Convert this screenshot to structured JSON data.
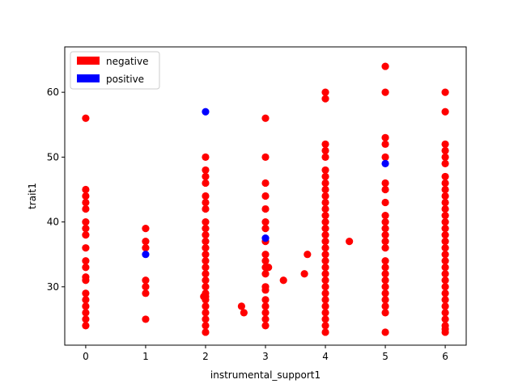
{
  "chart_data": {
    "type": "scatter",
    "xlabel": "instrumental_support1",
    "ylabel": "trait1",
    "xlim": [
      -0.35,
      6.35
    ],
    "ylim": [
      21,
      67
    ],
    "xticks": [
      0,
      1,
      2,
      3,
      4,
      5,
      6
    ],
    "yticks": [
      30,
      40,
      50,
      60
    ],
    "grid": false,
    "legend_position": "top-left",
    "series": [
      {
        "name": "negative",
        "color": "#ff0000",
        "points": [
          [
            0,
            56
          ],
          [
            0,
            45
          ],
          [
            0,
            44
          ],
          [
            0,
            43
          ],
          [
            0,
            42
          ],
          [
            0,
            40
          ],
          [
            0,
            39
          ],
          [
            0,
            38
          ],
          [
            0,
            36
          ],
          [
            0,
            34
          ],
          [
            0,
            33
          ],
          [
            0,
            31.5
          ],
          [
            0,
            31
          ],
          [
            0,
            29
          ],
          [
            0,
            28
          ],
          [
            0,
            27
          ],
          [
            0,
            26
          ],
          [
            0,
            25
          ],
          [
            0,
            24
          ],
          [
            1,
            39
          ],
          [
            1,
            37
          ],
          [
            1,
            36
          ],
          [
            1,
            31
          ],
          [
            1,
            30
          ],
          [
            1,
            29
          ],
          [
            1,
            25
          ],
          [
            2,
            50
          ],
          [
            2,
            48
          ],
          [
            2,
            47
          ],
          [
            2,
            46
          ],
          [
            2,
            44
          ],
          [
            2,
            43
          ],
          [
            2,
            42
          ],
          [
            2,
            40
          ],
          [
            2,
            39
          ],
          [
            2,
            38
          ],
          [
            2,
            37
          ],
          [
            2,
            36
          ],
          [
            2,
            35
          ],
          [
            2,
            34
          ],
          [
            2,
            33
          ],
          [
            2,
            32
          ],
          [
            2,
            31
          ],
          [
            2,
            30
          ],
          [
            2,
            29
          ],
          [
            2,
            28.5
          ],
          [
            2,
            28
          ],
          [
            2,
            27
          ],
          [
            2,
            26
          ],
          [
            2,
            25
          ],
          [
            2,
            24
          ],
          [
            2,
            23
          ],
          [
            1.97,
            28.5
          ],
          [
            2.6,
            27
          ],
          [
            2.64,
            26
          ],
          [
            3,
            56
          ],
          [
            3,
            50
          ],
          [
            3,
            46
          ],
          [
            3,
            44
          ],
          [
            3,
            42
          ],
          [
            3,
            40
          ],
          [
            3,
            39
          ],
          [
            3,
            37
          ],
          [
            3,
            35
          ],
          [
            3,
            34
          ],
          [
            3,
            33
          ],
          [
            3,
            32
          ],
          [
            3,
            30
          ],
          [
            3,
            29.5
          ],
          [
            3,
            28
          ],
          [
            3,
            27
          ],
          [
            3,
            26
          ],
          [
            3,
            25
          ],
          [
            3,
            24
          ],
          [
            3.05,
            33
          ],
          [
            3.3,
            31
          ],
          [
            3.65,
            32
          ],
          [
            3.7,
            35
          ],
          [
            4,
            60
          ],
          [
            4,
            59
          ],
          [
            4,
            52
          ],
          [
            4,
            51
          ],
          [
            4,
            50
          ],
          [
            4,
            48
          ],
          [
            4,
            47
          ],
          [
            4,
            46
          ],
          [
            4,
            45
          ],
          [
            4,
            44
          ],
          [
            4,
            43
          ],
          [
            4,
            42
          ],
          [
            4,
            41
          ],
          [
            4,
            40
          ],
          [
            4,
            39
          ],
          [
            4,
            38
          ],
          [
            4,
            37
          ],
          [
            4,
            36
          ],
          [
            4,
            35
          ],
          [
            4,
            34
          ],
          [
            4,
            33
          ],
          [
            4,
            32
          ],
          [
            4,
            31
          ],
          [
            4,
            30
          ],
          [
            4,
            29
          ],
          [
            4,
            28
          ],
          [
            4,
            27
          ],
          [
            4,
            26
          ],
          [
            4,
            25
          ],
          [
            4,
            24
          ],
          [
            4,
            23
          ],
          [
            4.4,
            37
          ],
          [
            5,
            64
          ],
          [
            5,
            60
          ],
          [
            5,
            53
          ],
          [
            5,
            52
          ],
          [
            5,
            50
          ],
          [
            5,
            46
          ],
          [
            5,
            45
          ],
          [
            5,
            43
          ],
          [
            5,
            41
          ],
          [
            5,
            40
          ],
          [
            5,
            39
          ],
          [
            5,
            38
          ],
          [
            5,
            37
          ],
          [
            5,
            36
          ],
          [
            5,
            34
          ],
          [
            5,
            33
          ],
          [
            5,
            32
          ],
          [
            5,
            31
          ],
          [
            5,
            30
          ],
          [
            5,
            29
          ],
          [
            5,
            28
          ],
          [
            5,
            27
          ],
          [
            5,
            26
          ],
          [
            5,
            23
          ],
          [
            6,
            60
          ],
          [
            6,
            57
          ],
          [
            6,
            52
          ],
          [
            6,
            51
          ],
          [
            6,
            50
          ],
          [
            6,
            49
          ],
          [
            6,
            47
          ],
          [
            6,
            46
          ],
          [
            6,
            45
          ],
          [
            6,
            44
          ],
          [
            6,
            43
          ],
          [
            6,
            42
          ],
          [
            6,
            41
          ],
          [
            6,
            40
          ],
          [
            6,
            39
          ],
          [
            6,
            38
          ],
          [
            6,
            37
          ],
          [
            6,
            36
          ],
          [
            6,
            35
          ],
          [
            6,
            34
          ],
          [
            6,
            33
          ],
          [
            6,
            32
          ],
          [
            6,
            31
          ],
          [
            6,
            30
          ],
          [
            6,
            29
          ],
          [
            6,
            28
          ],
          [
            6,
            27
          ],
          [
            6,
            26
          ],
          [
            6,
            25
          ],
          [
            6,
            24
          ],
          [
            6,
            23.5
          ],
          [
            6,
            23
          ]
        ]
      },
      {
        "name": "positive",
        "color": "#0000ff",
        "points": [
          [
            1,
            35
          ],
          [
            2,
            57
          ],
          [
            3,
            37.5
          ],
          [
            5,
            49
          ]
        ]
      }
    ]
  }
}
